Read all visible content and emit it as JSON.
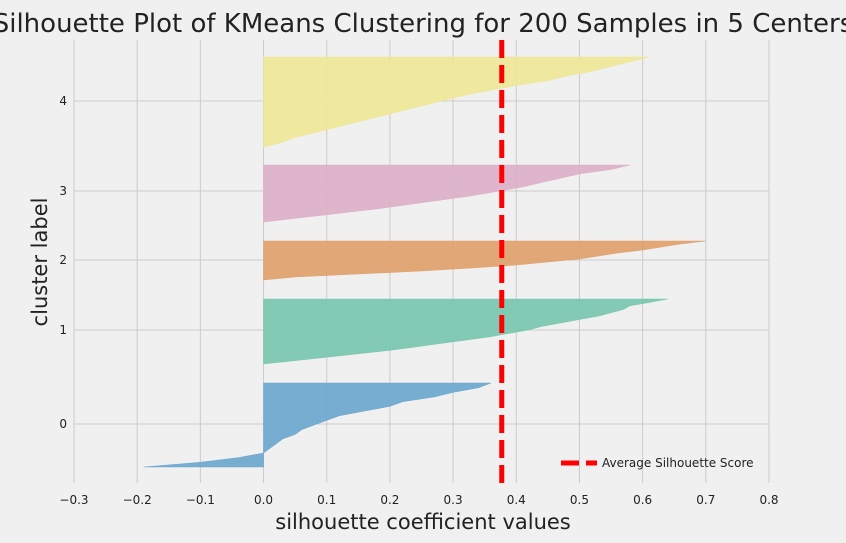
{
  "chart_data": {
    "type": "area",
    "title": "Silhouette Plot of KMeans Clustering for 200 Samples in 5 Centers",
    "xlabel": "silhouette coefficient values",
    "ylabel": "cluster label",
    "xlim": [
      -0.3,
      0.8
    ],
    "xticks": [
      "−0.3",
      "−0.2",
      "−0.1",
      "0.0",
      "0.1",
      "0.2",
      "0.3",
      "0.4",
      "0.5",
      "0.6",
      "0.7",
      "0.8"
    ],
    "xtick_values": [
      -0.3,
      -0.2,
      -0.1,
      0.0,
      0.1,
      0.2,
      0.3,
      0.4,
      0.5,
      0.6,
      0.7,
      0.8
    ],
    "yticks": [
      "0",
      "1",
      "2",
      "3",
      "4"
    ],
    "grid": true,
    "legend_position": "lower-right",
    "average_silhouette_score": 0.377,
    "legend_label": "Average Silhouette Score",
    "series": [
      {
        "cluster": "0",
        "color": "#6fa9cf",
        "sorted_values_desc": [
          0.36,
          0.34,
          0.3,
          0.27,
          0.22,
          0.2,
          0.16,
          0.12,
          0.1,
          0.08,
          0.06,
          0.05,
          0.03,
          0.02,
          0.01,
          0.0,
          -0.04,
          -0.1,
          -0.19
        ]
      },
      {
        "cluster": "1",
        "color": "#7bc7b0",
        "sorted_values_desc": [
          0.64,
          0.61,
          0.58,
          0.57,
          0.55,
          0.53,
          0.5,
          0.47,
          0.44,
          0.42,
          0.39,
          0.36,
          0.32,
          0.28,
          0.24,
          0.2,
          0.15,
          0.1,
          0.05,
          0.0
        ]
      },
      {
        "cluster": "2",
        "color": "#e0a26f",
        "sorted_values_desc": [
          0.7,
          0.66,
          0.63,
          0.6,
          0.56,
          0.53,
          0.5,
          0.45,
          0.4,
          0.33,
          0.25,
          0.15,
          0.05,
          0.0
        ]
      },
      {
        "cluster": "3",
        "color": "#dcb1c8",
        "sorted_values_desc": [
          0.58,
          0.55,
          0.5,
          0.47,
          0.44,
          0.41,
          0.37,
          0.33,
          0.28,
          0.23,
          0.18,
          0.12,
          0.06,
          0.0
        ]
      },
      {
        "cluster": "4",
        "color": "#eee79a",
        "sorted_values_desc": [
          0.61,
          0.58,
          0.55,
          0.52,
          0.48,
          0.45,
          0.4,
          0.36,
          0.32,
          0.29,
          0.26,
          0.23,
          0.2,
          0.17,
          0.14,
          0.11,
          0.08,
          0.05,
          0.03,
          0.0
        ]
      }
    ]
  },
  "colors": {
    "background": "#f0f0f0",
    "grid": "#cbcbcb",
    "average_line": "#ff0000"
  }
}
